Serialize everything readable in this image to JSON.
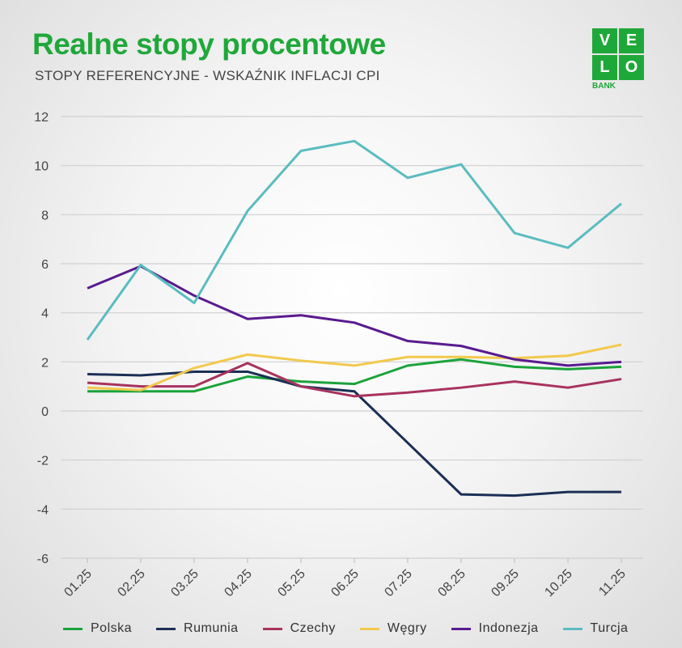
{
  "header": {
    "title": "Realne stopy procentowe",
    "subtitle": "STOPY REFERENCYJNE - WSKAŹNIK INFLACJI CPI"
  },
  "logo": {
    "letters": [
      "V",
      "E",
      "L",
      "O"
    ],
    "bank": "BANK"
  },
  "chart_data": {
    "type": "line",
    "title": "Realne stopy procentowe",
    "subtitle": "STOPY REFERENCYJNE - WSKAŹNIK INFLACJI CPI",
    "xlabel": "",
    "ylabel": "",
    "categories": [
      "01.25",
      "02.25",
      "03.25",
      "04.25",
      "05.25",
      "06.25",
      "07.25",
      "08.25",
      "09.25",
      "10.25",
      "11.25"
    ],
    "ylim": [
      -6,
      12
    ],
    "yticks": [
      12,
      10,
      8,
      6,
      4,
      2,
      0,
      -2,
      -4,
      -6
    ],
    "grid": true,
    "legend": "bottom",
    "series": [
      {
        "name": "Polska",
        "color": "#1aa33a",
        "values": [
          0.8,
          0.8,
          0.8,
          1.4,
          1.2,
          1.1,
          1.85,
          2.1,
          1.8,
          1.7,
          1.8
        ]
      },
      {
        "name": "Rumunia",
        "color": "#1b2f55",
        "values": [
          1.5,
          1.45,
          1.6,
          1.6,
          1.0,
          0.8,
          -1.3,
          -3.4,
          -3.45,
          -3.3,
          -3.3
        ]
      },
      {
        "name": "Czechy",
        "color": "#a8325e",
        "values": [
          1.15,
          1.0,
          1.0,
          1.95,
          1.0,
          0.6,
          0.75,
          0.95,
          1.2,
          0.95,
          1.3
        ]
      },
      {
        "name": "Węgry",
        "color": "#f2c94c",
        "values": [
          0.95,
          0.85,
          1.75,
          2.3,
          2.05,
          1.85,
          2.2,
          2.2,
          2.15,
          2.25,
          2.7
        ]
      },
      {
        "name": "Indonezja",
        "color": "#5a1a8f",
        "values": [
          5.0,
          5.9,
          4.7,
          3.75,
          3.9,
          3.6,
          2.85,
          2.65,
          2.1,
          1.85,
          2.0
        ]
      },
      {
        "name": "Turcja",
        "color": "#5bbcc0",
        "values": [
          2.9,
          5.95,
          4.4,
          8.15,
          10.6,
          11.0,
          9.5,
          10.05,
          7.25,
          6.65,
          8.45
        ]
      }
    ]
  }
}
